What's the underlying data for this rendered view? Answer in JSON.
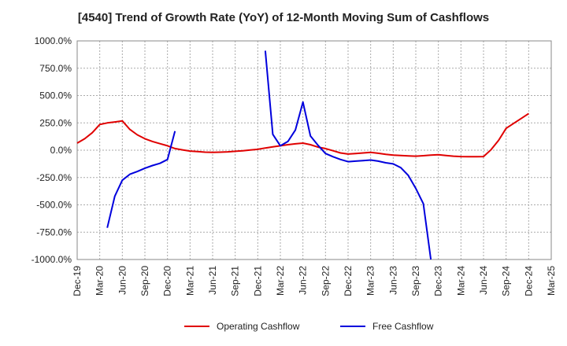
{
  "chart_data": {
    "type": "line",
    "title": "[4540]  Trend of Growth Rate (YoY) of 12-Month Moving Sum of Cashflows",
    "xlabel": "",
    "ylabel": "",
    "ylim": [
      -1000,
      1000
    ],
    "y_ticks": [
      1000,
      750,
      500,
      250,
      0,
      -250,
      -500,
      -750,
      -1000
    ],
    "y_tick_labels": [
      "1000.0%",
      "750.0%",
      "500.0%",
      "250.0%",
      "0.0%",
      "-250.0%",
      "-500.0%",
      "-750.0%",
      "-1000.0%"
    ],
    "x_tick_labels": [
      "Dec-19",
      "Mar-20",
      "Jun-20",
      "Sep-20",
      "Dec-20",
      "Mar-21",
      "Jun-21",
      "Sep-21",
      "Dec-21",
      "Mar-22",
      "Jun-22",
      "Sep-22",
      "Dec-22",
      "Mar-23",
      "Jun-23",
      "Sep-23",
      "Dec-23",
      "Mar-24",
      "Jun-24",
      "Sep-24",
      "Dec-24",
      "Mar-25"
    ],
    "grid": true,
    "grid_style": "dotted",
    "legend_position": "bottom-center",
    "series": [
      {
        "name": "Operating Cashflow",
        "color": "#e00000",
        "points": [
          [
            "Dec-19",
            65
          ],
          [
            "Jan-20",
            105
          ],
          [
            "Feb-20",
            160
          ],
          [
            "Mar-20",
            235
          ],
          [
            "Apr-20",
            250
          ],
          [
            "May-20",
            258
          ],
          [
            "Jun-20",
            268
          ],
          [
            "Jul-20",
            190
          ],
          [
            "Aug-20",
            140
          ],
          [
            "Sep-20",
            105
          ],
          [
            "Oct-20",
            80
          ],
          [
            "Nov-20",
            60
          ],
          [
            "Dec-20",
            40
          ],
          [
            "Jan-21",
            15
          ],
          [
            "Feb-21",
            3
          ],
          [
            "Mar-21",
            -8
          ],
          [
            "Apr-21",
            -12
          ],
          [
            "May-21",
            -18
          ],
          [
            "Jun-21",
            -20
          ],
          [
            "Jul-21",
            -18
          ],
          [
            "Aug-21",
            -15
          ],
          [
            "Sep-21",
            -10
          ],
          [
            "Oct-21",
            -5
          ],
          [
            "Nov-21",
            2
          ],
          [
            "Dec-21",
            8
          ],
          [
            "Jan-22",
            20
          ],
          [
            "Feb-22",
            30
          ],
          [
            "Mar-22",
            40
          ],
          [
            "Apr-22",
            50
          ],
          [
            "May-22",
            58
          ],
          [
            "Jun-22",
            65
          ],
          [
            "Jul-22",
            50
          ],
          [
            "Aug-22",
            28
          ],
          [
            "Sep-22",
            15
          ],
          [
            "Oct-22",
            -5
          ],
          [
            "Nov-22",
            -25
          ],
          [
            "Dec-22",
            -35
          ],
          [
            "Jan-23",
            -30
          ],
          [
            "Feb-23",
            -25
          ],
          [
            "Mar-23",
            -20
          ],
          [
            "Apr-23",
            -28
          ],
          [
            "May-23",
            -38
          ],
          [
            "Jun-23",
            -45
          ],
          [
            "Jul-23",
            -48
          ],
          [
            "Aug-23",
            -52
          ],
          [
            "Sep-23",
            -55
          ],
          [
            "Oct-23",
            -50
          ],
          [
            "Nov-23",
            -45
          ],
          [
            "Dec-23",
            -42
          ],
          [
            "Jan-24",
            -48
          ],
          [
            "Feb-24",
            -55
          ],
          [
            "Mar-24",
            -58
          ],
          [
            "Apr-24",
            -60
          ],
          [
            "May-24",
            -60
          ],
          [
            "Jun-24",
            -58
          ],
          [
            "Jul-24",
            5
          ],
          [
            "Aug-24",
            90
          ],
          [
            "Sep-24",
            200
          ],
          [
            "Oct-24",
            245
          ],
          [
            "Nov-24",
            290
          ],
          [
            "Dec-24",
            335
          ]
        ]
      },
      {
        "name": "Free Cashflow",
        "color": "#0000dd",
        "points": [
          [
            "Apr-20",
            -710
          ],
          [
            "May-20",
            -420
          ],
          [
            "Jun-20",
            -275
          ],
          [
            "Jul-20",
            -220
          ],
          [
            "Aug-20",
            -195
          ],
          [
            "Sep-20",
            -165
          ],
          [
            "Oct-20",
            -140
          ],
          [
            "Nov-20",
            -120
          ],
          [
            "Dec-20",
            -85
          ],
          [
            "Jan-21",
            175
          ],
          [
            "Feb-21",
            null
          ],
          [
            "Mar-21",
            null
          ],
          [
            "Apr-21",
            null
          ],
          [
            "May-21",
            null
          ],
          [
            "Jun-21",
            null
          ],
          [
            "Jul-21",
            null
          ],
          [
            "Aug-21",
            null
          ],
          [
            "Sep-21",
            null
          ],
          [
            "Oct-21",
            null
          ],
          [
            "Nov-21",
            null
          ],
          [
            "Dec-21",
            null
          ],
          [
            "Jan-22",
            910
          ],
          [
            "Feb-22",
            145
          ],
          [
            "Mar-22",
            40
          ],
          [
            "Apr-22",
            80
          ],
          [
            "May-22",
            185
          ],
          [
            "Jun-22",
            440
          ],
          [
            "Jul-22",
            130
          ],
          [
            "Aug-22",
            45
          ],
          [
            "Sep-22",
            -30
          ],
          [
            "Oct-22",
            -60
          ],
          [
            "Nov-22",
            -85
          ],
          [
            "Dec-22",
            -105
          ],
          [
            "Jan-23",
            -100
          ],
          [
            "Feb-23",
            -95
          ],
          [
            "Mar-23",
            -90
          ],
          [
            "Apr-23",
            -100
          ],
          [
            "May-23",
            -115
          ],
          [
            "Jun-23",
            -125
          ],
          [
            "Jul-23",
            -160
          ],
          [
            "Aug-23",
            -230
          ],
          [
            "Sep-23",
            -350
          ],
          [
            "Oct-23",
            -490
          ],
          [
            "Nov-23",
            -1000
          ]
        ]
      }
    ]
  }
}
